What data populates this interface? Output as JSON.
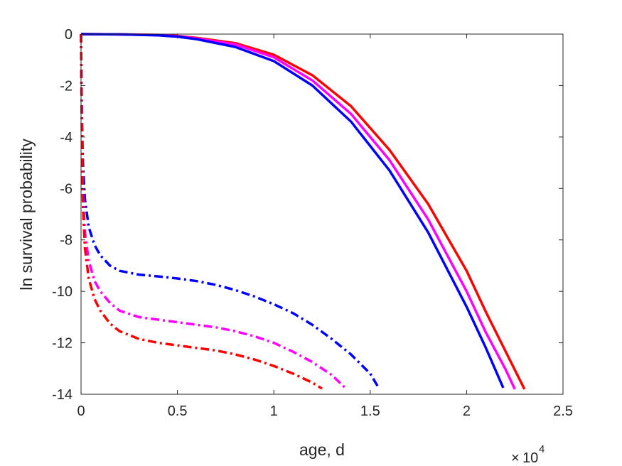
{
  "chart_data": {
    "type": "line",
    "title": "",
    "xlabel": "age, d",
    "ylabel": "ln survival probability",
    "x_multiplier_base": "10",
    "x_multiplier_exp": "4",
    "x_multiplier_prefix": "×",
    "xlim": [
      0,
      25000
    ],
    "ylim": [
      -14,
      0
    ],
    "xticks": [
      0,
      5000,
      10000,
      15000,
      20000,
      25000
    ],
    "xtick_labels": [
      "0",
      "0.5",
      "1",
      "1.5",
      "2",
      "2.5"
    ],
    "yticks": [
      0,
      -2,
      -4,
      -6,
      -8,
      -10,
      -12,
      -14
    ],
    "ytick_labels": [
      "0",
      "-2",
      "-4",
      "-6",
      "-8",
      "-10",
      "-12",
      "-14"
    ],
    "grid": false,
    "legend": "none",
    "series": [
      {
        "color": "#ff0000",
        "dash": "solid",
        "x": [
          0,
          2000,
          4000,
          5000,
          6000,
          8000,
          10000,
          12000,
          14000,
          16000,
          18000,
          20000,
          21000,
          22000,
          23000
        ],
        "y": [
          0,
          -0.01,
          -0.03,
          -0.07,
          -0.15,
          -0.35,
          -0.8,
          -1.6,
          -2.8,
          -4.5,
          -6.6,
          -9.2,
          -10.8,
          -12.3,
          -13.8
        ]
      },
      {
        "color": "#ff00ff",
        "dash": "solid",
        "x": [
          0,
          2000,
          4000,
          5000,
          6000,
          8000,
          10000,
          12000,
          14000,
          16000,
          18000,
          20000,
          21000,
          22000,
          22500
        ],
        "y": [
          0,
          -0.01,
          -0.04,
          -0.08,
          -0.17,
          -0.4,
          -0.9,
          -1.8,
          -3.1,
          -4.9,
          -7.2,
          -10.0,
          -11.6,
          -13.0,
          -13.8
        ]
      },
      {
        "color": "#0000ff",
        "dash": "solid",
        "x": [
          0,
          2000,
          4000,
          5000,
          6000,
          8000,
          10000,
          12000,
          14000,
          16000,
          18000,
          20000,
          21000,
          21900
        ],
        "y": [
          0,
          -0.01,
          -0.05,
          -0.1,
          -0.2,
          -0.5,
          -1.05,
          -2.0,
          -3.4,
          -5.3,
          -7.7,
          -10.6,
          -12.2,
          -13.75
        ]
      },
      {
        "color": "#0000ff",
        "dash": "dashdot",
        "x": [
          0,
          30,
          60,
          100,
          200,
          400,
          700,
          1000,
          1500,
          2000,
          3000,
          4000,
          5000,
          6000,
          7000,
          8000,
          9000,
          10000,
          11000,
          12000,
          13000,
          14000,
          15000,
          15400
        ],
        "y": [
          0,
          -2.2,
          -3.8,
          -5.0,
          -6.4,
          -7.5,
          -8.2,
          -8.6,
          -9.0,
          -9.2,
          -9.35,
          -9.42,
          -9.5,
          -9.6,
          -9.75,
          -9.95,
          -10.2,
          -10.5,
          -10.85,
          -11.3,
          -11.85,
          -12.45,
          -13.2,
          -13.7
        ]
      },
      {
        "color": "#ff00ff",
        "dash": "dashdot",
        "x": [
          0,
          30,
          60,
          100,
          200,
          400,
          700,
          1000,
          1500,
          2000,
          3000,
          4000,
          5000,
          6000,
          7000,
          8000,
          9000,
          10000,
          11000,
          12000,
          13000,
          13700
        ],
        "y": [
          0,
          -2.6,
          -4.6,
          -6.2,
          -7.7,
          -8.8,
          -9.6,
          -10.0,
          -10.45,
          -10.75,
          -11.0,
          -11.1,
          -11.2,
          -11.3,
          -11.4,
          -11.55,
          -11.75,
          -12.0,
          -12.35,
          -12.75,
          -13.25,
          -13.75
        ]
      },
      {
        "color": "#ff0000",
        "dash": "dashdot",
        "x": [
          0,
          30,
          60,
          100,
          200,
          400,
          700,
          1000,
          1500,
          2000,
          3000,
          4000,
          5000,
          6000,
          7000,
          8000,
          9000,
          10000,
          11000,
          12000,
          12500
        ],
        "y": [
          0,
          -2.9,
          -5.0,
          -6.7,
          -8.3,
          -9.5,
          -10.3,
          -10.75,
          -11.25,
          -11.55,
          -11.85,
          -12.0,
          -12.1,
          -12.2,
          -12.3,
          -12.45,
          -12.65,
          -12.9,
          -13.2,
          -13.55,
          -13.78
        ]
      }
    ]
  }
}
